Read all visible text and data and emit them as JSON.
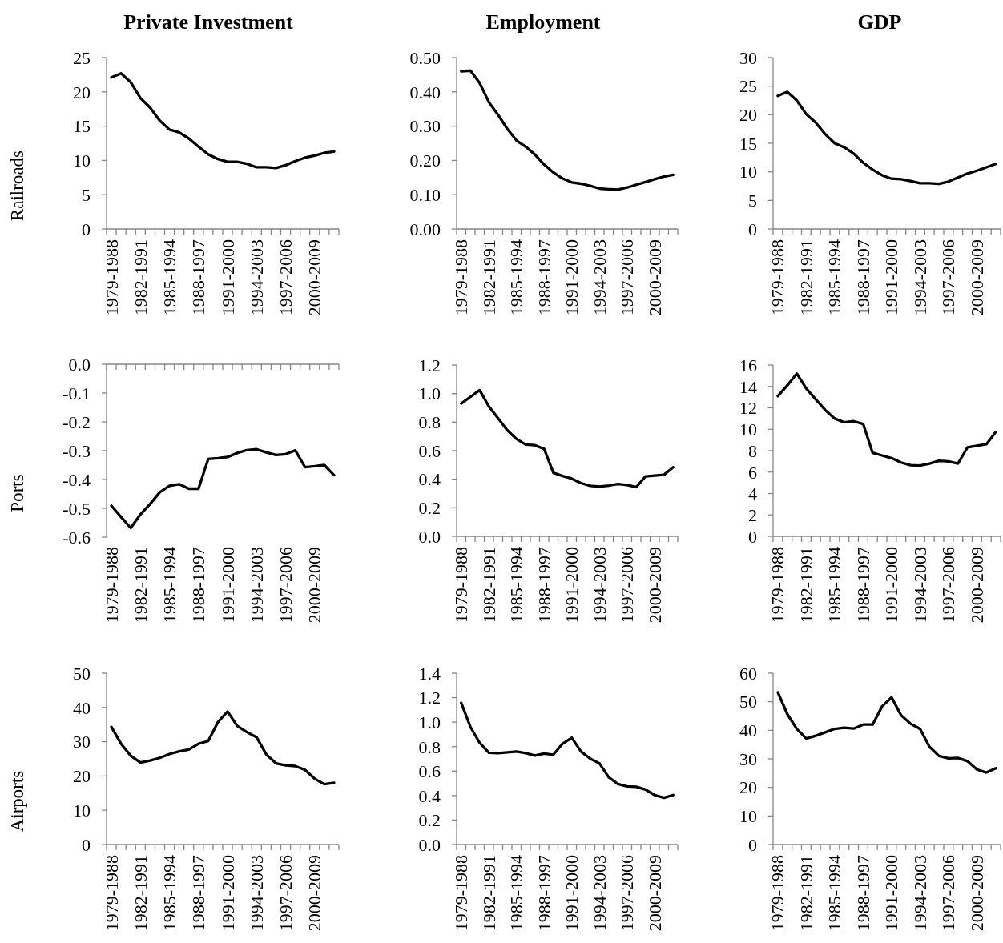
{
  "chart_data": [
    {
      "type": "line",
      "title": "Private Investment",
      "ylabel": "Railroads",
      "categories": [
        "1979-1988",
        null,
        null,
        "1982-1991",
        null,
        null,
        "1985-1994",
        null,
        null,
        "1988-1997",
        null,
        null,
        "1991-2000",
        null,
        null,
        "1994-2003",
        null,
        null,
        "1997-2006",
        null,
        null,
        "2000-2009",
        null,
        null
      ],
      "values": [
        22.1,
        22.7,
        21.4,
        19.1,
        17.7,
        15.8,
        14.5,
        14.1,
        13.2,
        12.0,
        10.9,
        10.2,
        9.8,
        9.8,
        9.5,
        9.0,
        9.0,
        8.9,
        9.3,
        9.9,
        10.4,
        10.7,
        11.1,
        11.3
      ],
      "color": "#000000",
      "ylim": [
        0,
        25
      ],
      "yticks": [
        0,
        5,
        10,
        15,
        20,
        25
      ]
    },
    {
      "type": "line",
      "title": "Employment",
      "categories": [
        "1979-1988",
        null,
        null,
        "1982-1991",
        null,
        null,
        "1985-1994",
        null,
        null,
        "1988-1997",
        null,
        null,
        "1991-2000",
        null,
        null,
        "1994-2003",
        null,
        null,
        "1997-2006",
        null,
        null,
        "2000-2009",
        null,
        null
      ],
      "values": [
        0.46,
        0.462,
        0.426,
        0.37,
        0.333,
        0.292,
        0.258,
        0.24,
        0.217,
        0.188,
        0.165,
        0.147,
        0.136,
        0.132,
        0.126,
        0.118,
        0.116,
        0.115,
        0.121,
        0.129,
        0.137,
        0.145,
        0.153,
        0.158
      ],
      "color": "#000000",
      "ylim": [
        0,
        0.5
      ],
      "yticks": [
        {
          "value": 0,
          "label": "0.00"
        },
        {
          "value": 0.1,
          "label": "0.10"
        },
        {
          "value": 0.2,
          "label": "0.20"
        },
        {
          "value": 0.3,
          "label": "0.30"
        },
        {
          "value": 0.4,
          "label": "0.40"
        },
        {
          "value": 0.5,
          "label": "0.50"
        }
      ]
    },
    {
      "type": "line",
      "title": "GDP",
      "categories": [
        "1979-1988",
        null,
        null,
        "1982-1991",
        null,
        null,
        "1985-1994",
        null,
        null,
        "1988-1997",
        null,
        null,
        "1991-2000",
        null,
        null,
        "1994-2003",
        null,
        null,
        "1997-2006",
        null,
        null,
        "2000-2009",
        null,
        null
      ],
      "values": [
        23.3,
        24.0,
        22.5,
        20.1,
        18.6,
        16.6,
        15.0,
        14.3,
        13.2,
        11.6,
        10.4,
        9.4,
        8.8,
        8.7,
        8.4,
        8.0,
        8.0,
        7.9,
        8.3,
        9.0,
        9.7,
        10.2,
        10.8,
        11.4
      ],
      "color": "#000000",
      "ylim": [
        0,
        30
      ],
      "yticks": [
        0,
        5,
        10,
        15,
        20,
        25,
        30
      ]
    },
    {
      "type": "line",
      "ylabel": "Ports",
      "categories": [
        "1979-1988",
        null,
        null,
        "1982-1991",
        null,
        null,
        "1985-1994",
        null,
        null,
        "1988-1997",
        null,
        null,
        "1991-2000",
        null,
        null,
        "1994-2003",
        null,
        null,
        "1997-2006",
        null,
        null,
        "2000-2009",
        null,
        null
      ],
      "values": [
        -0.491,
        -0.53,
        -0.568,
        -0.521,
        -0.485,
        -0.444,
        -0.422,
        -0.416,
        -0.432,
        -0.432,
        -0.329,
        -0.326,
        -0.322,
        -0.308,
        -0.298,
        -0.295,
        -0.306,
        -0.315,
        -0.312,
        -0.299,
        -0.357,
        -0.354,
        -0.35,
        -0.385
      ],
      "color": "#000000",
      "ylim": [
        -0.6,
        0
      ],
      "yticks": [
        {
          "value": -0.6,
          "label": "-0.6"
        },
        {
          "value": -0.5,
          "label": "-0.5"
        },
        {
          "value": -0.4,
          "label": "-0.4"
        },
        {
          "value": -0.3,
          "label": "-0.3"
        },
        {
          "value": -0.2,
          "label": "-0.2"
        },
        {
          "value": -0.1,
          "label": "-0.1"
        },
        {
          "value": 0,
          "label": "0.0"
        }
      ]
    },
    {
      "type": "line",
      "categories": [
        "1979-1988",
        null,
        null,
        "1982-1991",
        null,
        null,
        "1985-1994",
        null,
        null,
        "1988-1997",
        null,
        null,
        "1991-2000",
        null,
        null,
        "1994-2003",
        null,
        null,
        "1997-2006",
        null,
        null,
        "2000-2009",
        null,
        null
      ],
      "values": [
        0.93,
        0.977,
        1.024,
        0.91,
        0.827,
        0.743,
        0.682,
        0.643,
        0.638,
        0.612,
        0.445,
        0.423,
        0.404,
        0.373,
        0.354,
        0.348,
        0.356,
        0.367,
        0.359,
        0.345,
        0.42,
        0.426,
        0.431,
        0.484
      ],
      "color": "#000000",
      "ylim": [
        0,
        1.2
      ],
      "yticks": [
        {
          "value": 0,
          "label": "0.0"
        },
        {
          "value": 0.2,
          "label": "0.2"
        },
        {
          "value": 0.4,
          "label": "0.4"
        },
        {
          "value": 0.6,
          "label": "0.6"
        },
        {
          "value": 0.8,
          "label": "0.8"
        },
        {
          "value": 1,
          "label": "1.0"
        },
        {
          "value": 1.2,
          "label": "1.2"
        }
      ]
    },
    {
      "type": "line",
      "categories": [
        "1979-1988",
        null,
        null,
        "1982-1991",
        null,
        null,
        "1985-1994",
        null,
        null,
        "1988-1997",
        null,
        null,
        "1991-2000",
        null,
        null,
        "1994-2003",
        null,
        null,
        "1997-2006",
        null,
        null,
        "2000-2009",
        null,
        null
      ],
      "values": [
        13.1,
        14.1,
        15.2,
        13.8,
        12.8,
        11.8,
        11.0,
        10.65,
        10.75,
        10.5,
        7.8,
        7.55,
        7.3,
        6.9,
        6.65,
        6.6,
        6.8,
        7.05,
        7.0,
        6.8,
        8.3,
        8.45,
        8.6,
        9.75
      ],
      "color": "#000000",
      "ylim": [
        0,
        16
      ],
      "yticks": [
        0,
        2,
        4,
        6,
        8,
        10,
        12,
        14,
        16
      ]
    },
    {
      "type": "line",
      "ylabel": "Airports",
      "categories": [
        "1979-1988",
        null,
        null,
        "1982-1991",
        null,
        null,
        "1985-1994",
        null,
        null,
        "1988-1997",
        null,
        null,
        "1991-2000",
        null,
        null,
        "1994-2003",
        null,
        null,
        "1997-2006",
        null,
        null,
        "2000-2009",
        null,
        null
      ],
      "values": [
        34.3,
        29.4,
        25.9,
        23.9,
        24.5,
        25.3,
        26.4,
        27.2,
        27.7,
        29.4,
        30.2,
        35.7,
        38.8,
        34.6,
        32.8,
        31.3,
        26.3,
        23.7,
        23.1,
        22.9,
        21.8,
        19.2,
        17.6,
        18.0
      ],
      "color": "#000000",
      "ylim": [
        0,
        50
      ],
      "yticks": [
        0,
        10,
        20,
        30,
        40,
        50
      ]
    },
    {
      "type": "line",
      "categories": [
        "1979-1988",
        null,
        null,
        "1982-1991",
        null,
        null,
        "1985-1994",
        null,
        null,
        "1988-1997",
        null,
        null,
        "1991-2000",
        null,
        null,
        "1994-2003",
        null,
        null,
        "1997-2006",
        null,
        null,
        "2000-2009",
        null,
        null
      ],
      "values": [
        1.157,
        0.96,
        0.831,
        0.75,
        0.747,
        0.753,
        0.76,
        0.747,
        0.727,
        0.744,
        0.734,
        0.824,
        0.873,
        0.76,
        0.702,
        0.663,
        0.55,
        0.495,
        0.475,
        0.472,
        0.449,
        0.404,
        0.382,
        0.404
      ],
      "color": "#000000",
      "ylim": [
        0,
        1.4
      ],
      "yticks": [
        {
          "value": 0,
          "label": "0.0"
        },
        {
          "value": 0.2,
          "label": "0.2"
        },
        {
          "value": 0.4,
          "label": "0.4"
        },
        {
          "value": 0.6,
          "label": "0.6"
        },
        {
          "value": 0.8,
          "label": "0.8"
        },
        {
          "value": 1,
          "label": "1.0"
        },
        {
          "value": 1.2,
          "label": "1.2"
        },
        {
          "value": 1.4,
          "label": "1.4"
        }
      ]
    },
    {
      "type": "line",
      "categories": [
        "1979-1988",
        null,
        null,
        "1982-1991",
        null,
        null,
        "1985-1994",
        null,
        null,
        "1988-1997",
        null,
        null,
        "1991-2000",
        null,
        null,
        "1994-2003",
        null,
        null,
        "1997-2006",
        null,
        null,
        "2000-2009",
        null,
        null
      ],
      "values": [
        53.3,
        45.7,
        40.5,
        37.1,
        38.1,
        39.3,
        40.5,
        40.9,
        40.6,
        42.0,
        42.0,
        48.4,
        51.5,
        45.3,
        42.3,
        40.5,
        34.2,
        31.0,
        30.2,
        30.3,
        29.2,
        26.3,
        25.2,
        26.7
      ],
      "color": "#000000",
      "ylim": [
        0,
        60
      ],
      "yticks": [
        0,
        10,
        20,
        30,
        40,
        50,
        60
      ]
    }
  ]
}
